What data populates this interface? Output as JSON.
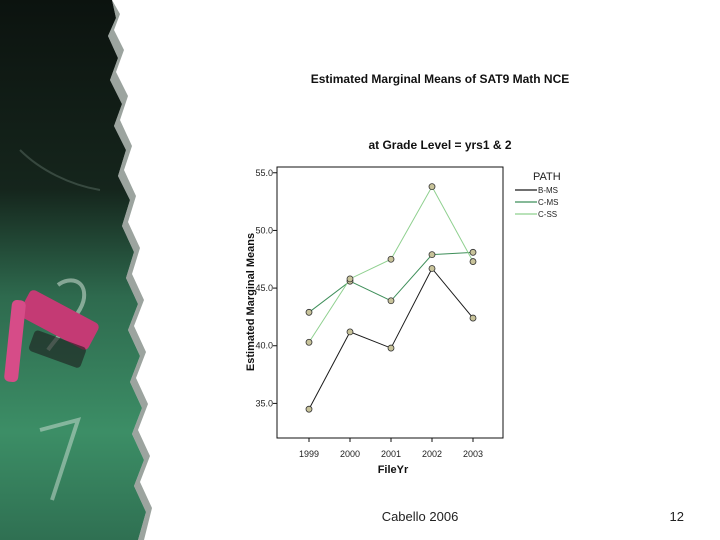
{
  "slide": {
    "title": "Estimated Marginal Means of SAT9 Math NCE",
    "subtitle": "at Grade Level = yrs1 & 2",
    "footer": "Cabello 2006",
    "slide_number": "12"
  },
  "chart_data": {
    "type": "line",
    "title": "Estimated Marginal Means of SAT9 Math NCE",
    "subtitle": "at Grade Level = yrs1 & 2",
    "xlabel": "FileYr",
    "ylabel": "Estimated Marginal Means",
    "categories": [
      "1999",
      "2000",
      "2001",
      "2002",
      "2003"
    ],
    "ylim": [
      32,
      55.5
    ],
    "yticks": [
      35.0,
      40.0,
      45.0,
      50.0,
      55.0
    ],
    "ytick_labels": [
      "35.0",
      "40.0",
      "45.0",
      "50.0",
      "55.0"
    ],
    "legend_title": "PATH",
    "legend_position": "top-right",
    "grid": false,
    "series": [
      {
        "name": "B-MS",
        "color": "#1a1a1a",
        "values": [
          34.5,
          41.2,
          39.8,
          46.7,
          42.4
        ]
      },
      {
        "name": "C-MS",
        "color": "#3f8f5a",
        "values": [
          42.9,
          45.6,
          43.9,
          47.9,
          48.1
        ]
      },
      {
        "name": "C-SS",
        "color": "#8fd08f",
        "values": [
          40.3,
          45.8,
          47.5,
          53.8,
          47.3
        ]
      }
    ],
    "marker_fill": "#c8c39a"
  }
}
